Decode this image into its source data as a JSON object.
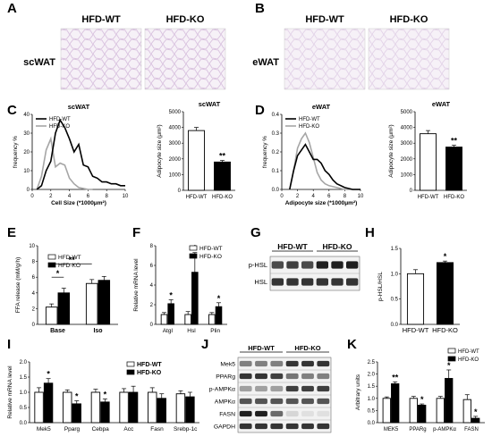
{
  "panel_letters": {
    "A": "A",
    "B": "B",
    "C": "C",
    "D": "D",
    "E": "E",
    "F": "F",
    "G": "G",
    "H": "H",
    "I": "I",
    "J": "J",
    "K": "K"
  },
  "histology": {
    "A": {
      "label_wt": "HFD-WT",
      "label_ko": "HFD-KO",
      "tissue": "scWAT",
      "color": "#d9c2df"
    },
    "B": {
      "label_wt": "HFD-WT",
      "label_ko": "HFD-KO",
      "tissue": "eWAT",
      "color": "#e3d3e8"
    }
  },
  "legend_wt": "HFD-WT",
  "legend_ko": "HFD-KO",
  "chart_data": [
    {
      "id": "C-line",
      "type": "line",
      "title": "scWAT",
      "xlabel": "Cell Size (*1000μm²)",
      "ylabel": "frequency %",
      "xlim": [
        0,
        10
      ],
      "ylim": [
        0,
        40
      ],
      "xticks": [
        0,
        2,
        4,
        6,
        8,
        10
      ],
      "yticks": [
        0,
        10,
        20,
        30,
        40
      ],
      "series": [
        {
          "name": "HFD-WT",
          "color": "#000000",
          "x": [
            0.5,
            1,
            1.5,
            2,
            2.5,
            3,
            3.5,
            4,
            4.5,
            5,
            5.5,
            6,
            6.5,
            7,
            7.5,
            8,
            8.5,
            9,
            9.5,
            10
          ],
          "y": [
            0,
            2,
            10,
            15,
            30,
            37,
            33,
            27,
            20,
            24,
            13,
            12,
            7,
            6,
            4,
            4,
            3,
            3,
            2,
            2
          ]
        },
        {
          "name": "HFD-KO",
          "color": "#a6a6a6",
          "x": [
            0.5,
            1,
            1.5,
            2,
            2.5,
            3,
            3.5,
            4,
            4.5,
            5,
            5.5,
            6,
            6.5
          ],
          "y": [
            0,
            7,
            21,
            27,
            12,
            14,
            13,
            6,
            3,
            1,
            0.5,
            0,
            0
          ]
        }
      ]
    },
    {
      "id": "C-bar",
      "type": "bar",
      "title": "scWAT",
      "ylabel": "Adipocyte size (μm²)",
      "categories": [
        "HFD-WT",
        "HFD-KO"
      ],
      "values": [
        3800,
        1800
      ],
      "errors": [
        200,
        100
      ],
      "fills": [
        "#ffffff",
        "#000000"
      ],
      "ylim": [
        0,
        5000
      ],
      "yticks": [
        0,
        1000,
        2000,
        3000,
        4000,
        5000
      ],
      "annotations": [
        {
          "bar": 1,
          "text": "**"
        }
      ]
    },
    {
      "id": "D-line",
      "type": "line",
      "title": "eWAT",
      "xlabel": "Adipocyte size (*1000μm²)",
      "ylabel": "frequency %",
      "xlim": [
        0,
        10
      ],
      "ylim": [
        0,
        0.4
      ],
      "xticks": [
        0,
        2,
        4,
        6,
        8,
        10
      ],
      "yticks": [
        0.0,
        0.1,
        0.2,
        0.3,
        0.4
      ],
      "series": [
        {
          "name": "HFD-WT",
          "color": "#000000",
          "x": [
            1,
            1.5,
            2,
            2.5,
            3,
            3.5,
            4,
            4.5,
            5,
            5.5,
            6,
            6.5,
            7,
            8,
            9,
            10
          ],
          "y": [
            0,
            0.1,
            0.18,
            0.21,
            0.24,
            0.2,
            0.16,
            0.16,
            0.14,
            0.1,
            0.08,
            0.05,
            0.03,
            0.01,
            0,
            0
          ]
        },
        {
          "name": "HFD-KO",
          "color": "#a6a6a6",
          "x": [
            1,
            1.5,
            2,
            2.5,
            3,
            3.5,
            4,
            4.5,
            5,
            5.5,
            6,
            7,
            8,
            9,
            10
          ],
          "y": [
            0,
            0.1,
            0.22,
            0.27,
            0.3,
            0.25,
            0.17,
            0.09,
            0.05,
            0.03,
            0.02,
            0.01,
            0,
            0,
            0
          ]
        }
      ]
    },
    {
      "id": "D-bar",
      "type": "bar",
      "title": "eWAT",
      "ylabel": "Adipocyte size (μm²)",
      "categories": [
        "HFD-WT",
        "HFD-KO"
      ],
      "values": [
        3600,
        2750
      ],
      "errors": [
        200,
        120
      ],
      "fills": [
        "#ffffff",
        "#000000"
      ],
      "ylim": [
        0,
        5000
      ],
      "yticks": [
        0,
        1000,
        2000,
        3000,
        4000,
        5000
      ],
      "annotations": [
        {
          "bar": 1,
          "text": "**"
        }
      ]
    },
    {
      "id": "E",
      "type": "bar",
      "ylabel": "FFA release (mM/g/h)",
      "categories": [
        "Base",
        "Iso"
      ],
      "series": [
        {
          "name": "HFD-WT",
          "fill": "#ffffff",
          "values": [
            2.2,
            5.2
          ],
          "errors": [
            0.4,
            0.5
          ]
        },
        {
          "name": "HFD-KO",
          "fill": "#000000",
          "values": [
            4.0,
            5.6
          ],
          "errors": [
            0.6,
            0.5
          ]
        }
      ],
      "ylim": [
        0,
        10
      ],
      "yticks": [
        0,
        2,
        4,
        6,
        8,
        10
      ],
      "annotations": [
        {
          "type": "bracket",
          "from": [
            0,
            0
          ],
          "to": [
            0,
            1
          ],
          "y": 6.0,
          "text": "*"
        },
        {
          "type": "bracket",
          "from": [
            0,
            0
          ],
          "to": [
            1,
            0
          ],
          "y": 7.7,
          "text": "**"
        }
      ]
    },
    {
      "id": "F",
      "type": "bar",
      "ylabel": "Relative mRNA level",
      "categories": [
        "Atgl",
        "Hsl",
        "Plin"
      ],
      "series": [
        {
          "name": "HFD-WT",
          "fill": "#ffffff",
          "values": [
            1.0,
            1.0,
            1.0
          ],
          "errors": [
            0.2,
            0.3,
            0.2
          ]
        },
        {
          "name": "HFD-KO",
          "fill": "#000000",
          "values": [
            2.1,
            5.3,
            1.8
          ],
          "errors": [
            0.4,
            2.0,
            0.4
          ]
        }
      ],
      "ylim": [
        0,
        8
      ],
      "yticks": [
        0,
        2,
        4,
        6,
        8
      ],
      "annotations": [
        {
          "cat": 0,
          "text": "*"
        },
        {
          "cat": 1,
          "text": "*"
        },
        {
          "cat": 2,
          "text": "*"
        }
      ]
    },
    {
      "id": "H",
      "type": "bar",
      "ylabel": "p-HSL/HSL",
      "categories": [
        "HFD-WT",
        "HFD-KO"
      ],
      "values": [
        1.0,
        1.22
      ],
      "errors": [
        0.08,
        0.03
      ],
      "fills": [
        "#ffffff",
        "#000000"
      ],
      "ylim": [
        0,
        1.5
      ],
      "yticks": [
        0.0,
        0.5,
        1.0,
        1.5
      ],
      "annotations": [
        {
          "bar": 1,
          "text": "*"
        }
      ]
    },
    {
      "id": "I",
      "type": "bar",
      "ylabel": "Relative mRNA level",
      "categories": [
        "Mek5",
        "Pparg",
        "Cebpa",
        "Acc",
        "Fasn",
        "Srebp-1c"
      ],
      "series": [
        {
          "name": "HFD-WT",
          "fill": "#ffffff",
          "values": [
            1.0,
            1.0,
            1.0,
            1.0,
            1.0,
            0.95
          ],
          "errors": [
            0.15,
            0.08,
            0.1,
            0.12,
            0.15,
            0.1
          ]
        },
        {
          "name": "HFD-KO",
          "fill": "#000000",
          "values": [
            1.3,
            0.62,
            0.68,
            1.0,
            0.8,
            0.85
          ],
          "errors": [
            0.15,
            0.1,
            0.1,
            0.2,
            0.15,
            0.15
          ]
        }
      ],
      "ylim": [
        0,
        2.0
      ],
      "yticks": [
        0.0,
        0.5,
        1.0,
        1.5,
        2.0
      ],
      "annotations": [
        {
          "cat": 0,
          "text": "*"
        },
        {
          "cat": 1,
          "text": "*"
        },
        {
          "cat": 2,
          "text": "*"
        }
      ]
    },
    {
      "id": "K",
      "type": "bar",
      "ylabel": "Arbitrary units",
      "categories": [
        "MEK5",
        "PPARg",
        "p-AMPKα",
        "FASN"
      ],
      "series": [
        {
          "name": "HFD-WT",
          "fill": "#ffffff",
          "values": [
            1.0,
            1.0,
            1.0,
            0.95
          ],
          "errors": [
            0.06,
            0.08,
            0.08,
            0.2
          ]
        },
        {
          "name": "HFD-KO",
          "fill": "#000000",
          "values": [
            1.6,
            0.72,
            1.82,
            0.18
          ],
          "errors": [
            0.08,
            0.05,
            0.35,
            0.08
          ]
        }
      ],
      "ylim": [
        0,
        2.5
      ],
      "yticks": [
        0.0,
        0.5,
        1.0,
        1.5,
        2.0,
        2.5
      ],
      "annotations": [
        {
          "cat": 0,
          "text": "**"
        },
        {
          "cat": 1,
          "text": "*"
        },
        {
          "cat": 2,
          "text": "*"
        },
        {
          "cat": 3,
          "text": "*"
        }
      ]
    }
  ],
  "blots": {
    "G": {
      "group_wt": "HFD-WT",
      "group_ko": "HFD-KO",
      "rows": [
        "p-HSL",
        "HSL"
      ],
      "intensities": [
        [
          0.75,
          0.8,
          0.75,
          0.95,
          0.95,
          0.95
        ],
        [
          0.85,
          0.85,
          0.85,
          0.85,
          0.85,
          0.85
        ]
      ]
    },
    "J": {
      "group_wt": "HFD-WT",
      "group_ko": "HFD-KO",
      "rows": [
        "Mek5",
        "PPARg",
        "p-AMPKα",
        "AMPKα",
        "FASN",
        "GAPDH"
      ],
      "intensities": [
        [
          0.5,
          0.5,
          0.5,
          0.85,
          0.85,
          0.85
        ],
        [
          0.85,
          0.85,
          0.8,
          0.55,
          0.5,
          0.5
        ],
        [
          0.35,
          0.35,
          0.35,
          0.8,
          0.8,
          0.8
        ],
        [
          0.7,
          0.7,
          0.7,
          0.7,
          0.7,
          0.7
        ],
        [
          0.95,
          0.95,
          0.6,
          0.1,
          0.05,
          0.05
        ],
        [
          0.85,
          0.85,
          0.85,
          0.85,
          0.85,
          0.85
        ]
      ]
    }
  }
}
